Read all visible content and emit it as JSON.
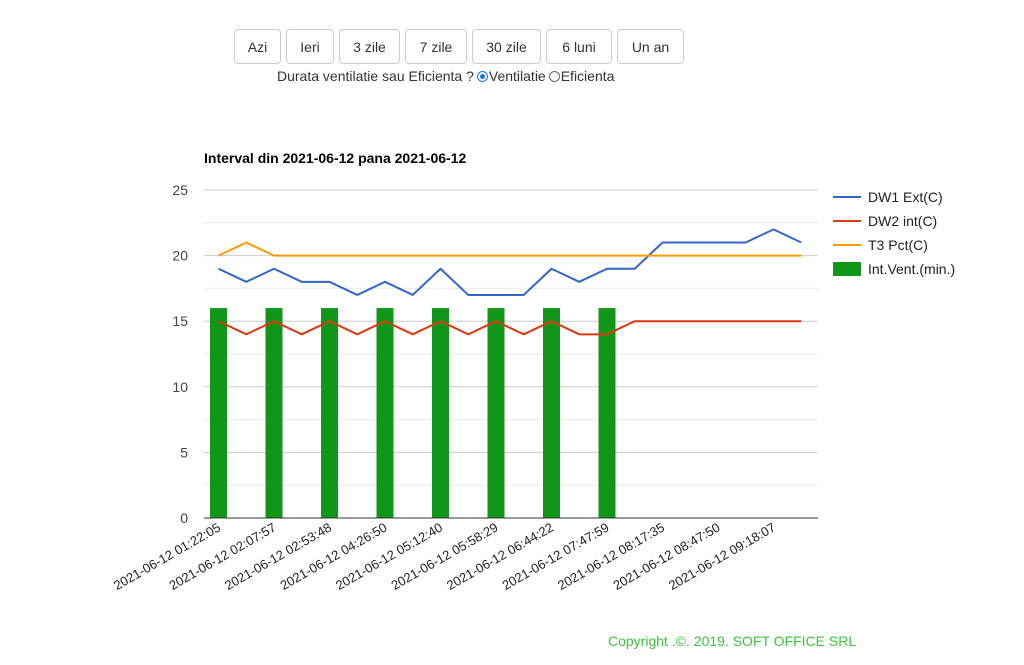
{
  "period_buttons": [
    "Azi",
    "Ieri",
    "3 zile",
    "7 zile",
    "30 zile",
    "6 luni",
    "Un an"
  ],
  "mode": {
    "question": "Durata ventilatie sau Eficienta ?",
    "options": [
      {
        "label": "Ventilatie",
        "checked": true
      },
      {
        "label": "Eficienta",
        "checked": false
      }
    ]
  },
  "chart_data": {
    "type": "line",
    "title": "Interval din 2021-06-12 pana 2021-06-12",
    "ylim": [
      0,
      25
    ],
    "y_ticks": [
      0,
      5,
      10,
      15,
      20,
      25
    ],
    "grid": true,
    "legend_position": "right",
    "x_tick_labels": [
      "2021-06-12 01:22:05",
      "2021-06-12 02:07:57",
      "2021-06-12 02:53:48",
      "2021-06-12 04:26:50",
      "2021-06-12 05:12:40",
      "2021-06-12 05:58:29",
      "2021-06-12 06:44:22",
      "2021-06-12 07:47:59",
      "2021-06-12 08:17:35",
      "2021-06-12 08:47:50",
      "2021-06-12 09:18:07"
    ],
    "series": [
      {
        "name": "DW1 Ext(C)",
        "type": "line",
        "color": "#3366cc",
        "values": [
          19,
          18,
          19,
          18,
          18,
          17,
          18,
          17,
          19,
          17,
          17,
          17,
          19,
          18,
          19,
          19,
          21,
          21,
          21,
          21,
          22,
          21
        ]
      },
      {
        "name": "DW2 int(C)",
        "type": "line",
        "color": "#dc3912",
        "values": [
          15,
          14,
          15,
          14,
          15,
          14,
          15,
          14,
          15,
          14,
          15,
          14,
          15,
          14,
          14,
          15,
          15,
          15,
          15,
          15,
          15,
          15
        ]
      },
      {
        "name": "T3 Pct(C)",
        "type": "line",
        "color": "#ff9900",
        "values": [
          20,
          21,
          20,
          20,
          20,
          20,
          20,
          20,
          20,
          20,
          20,
          20,
          20,
          20,
          20,
          20,
          20,
          20,
          20,
          20,
          20,
          20
        ]
      },
      {
        "name": "Int.Vent.(min.)",
        "type": "bar",
        "color": "#109618",
        "values": [
          16,
          0,
          16,
          0,
          16,
          0,
          16,
          0,
          16,
          0,
          16,
          0,
          16,
          0,
          16,
          0,
          0,
          0,
          0,
          0,
          0,
          0
        ]
      }
    ]
  },
  "footer": "Copyright .©. 2019. SOFT OFFICE SRL"
}
